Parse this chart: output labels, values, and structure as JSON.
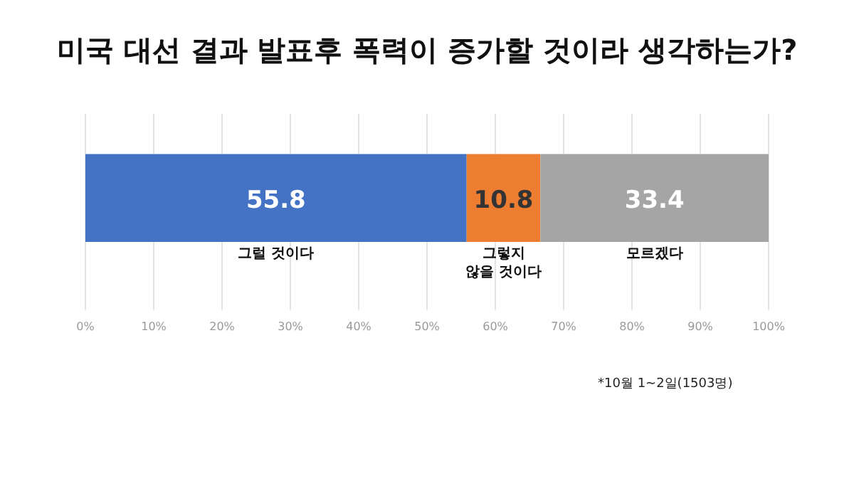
{
  "chart_data": {
    "type": "bar",
    "orientation": "horizontal",
    "stacked": true,
    "title": "미국 대선 결과 발표후 폭력이 증가할 것이라 생각하는가?",
    "categories": [
      null
    ],
    "series": [
      {
        "name": "그럴 것이다",
        "color": "#4472c4",
        "values": [
          55.8
        ]
      },
      {
        "name": "그렇지 않을 것이다",
        "color": "#ed7d31",
        "values": [
          10.8
        ]
      },
      {
        "name": "모르겠다",
        "color": "#a5a5a5",
        "values": [
          33.4
        ]
      }
    ],
    "data_labels": true,
    "xlim": [
      0,
      100
    ],
    "xticks": [
      {
        "value": 0,
        "label": "0%"
      },
      {
        "value": 10,
        "label": "10%"
      },
      {
        "value": 20,
        "label": "20%"
      },
      {
        "value": 30,
        "label": "30%"
      },
      {
        "value": 40,
        "label": "40%"
      },
      {
        "value": 50,
        "label": "50%"
      },
      {
        "value": 60,
        "label": "60%"
      },
      {
        "value": 70,
        "label": "70%"
      },
      {
        "value": 80,
        "label": "80%"
      },
      {
        "value": 90,
        "label": "90%"
      },
      {
        "value": 100,
        "label": "100%"
      }
    ],
    "grid": "x",
    "annotations": [
      "*10월 1~2일(1503명)"
    ]
  }
}
